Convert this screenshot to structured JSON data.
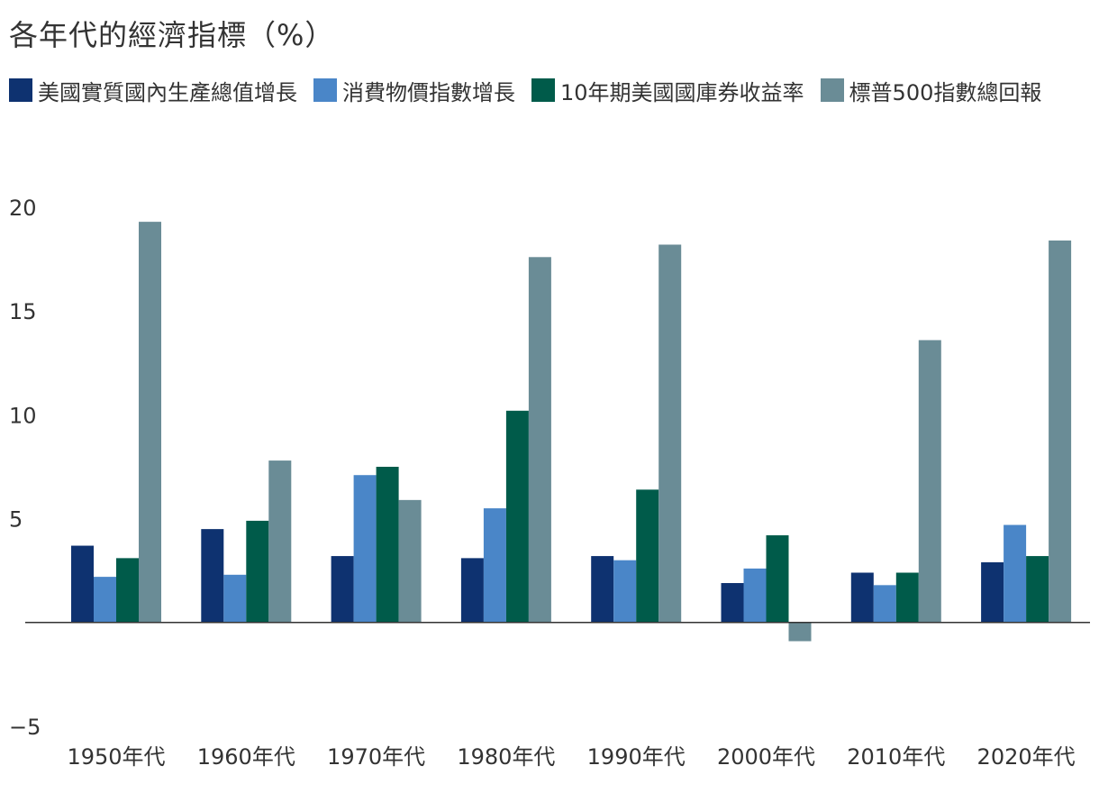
{
  "chart_data": {
    "type": "bar",
    "title": "各年代的經濟指標（%）",
    "categories": [
      "1950年代",
      "1960年代",
      "1970年代",
      "1980年代",
      "1990年代",
      "2000年代",
      "2010年代",
      "2020年代"
    ],
    "series": [
      {
        "name": "美國實質國內生產總值增長",
        "color": "#0e3270",
        "values": [
          3.7,
          4.5,
          3.2,
          3.1,
          3.2,
          1.9,
          2.4,
          2.9
        ]
      },
      {
        "name": "消費物價指數增長",
        "color": "#4a86c8",
        "values": [
          2.2,
          2.3,
          7.1,
          5.5,
          3.0,
          2.6,
          1.8,
          4.7
        ]
      },
      {
        "name": "10年期美國國庫券收益率",
        "color": "#005b4a",
        "values": [
          3.1,
          4.9,
          7.5,
          10.2,
          6.4,
          4.2,
          2.4,
          3.2
        ]
      },
      {
        "name": "標普500指數總回報",
        "color": "#6a8c96",
        "values": [
          19.3,
          7.8,
          5.9,
          17.6,
          18.2,
          -0.9,
          13.6,
          18.4
        ]
      }
    ],
    "ylim": [
      -5,
      20
    ],
    "yticks": [
      "20",
      "15",
      "10",
      "5",
      "−5"
    ],
    "ytick_values": [
      20,
      15,
      10,
      5,
      -5
    ],
    "xlabel": "",
    "ylabel": "",
    "grid": false,
    "legend_position": "top-left"
  }
}
